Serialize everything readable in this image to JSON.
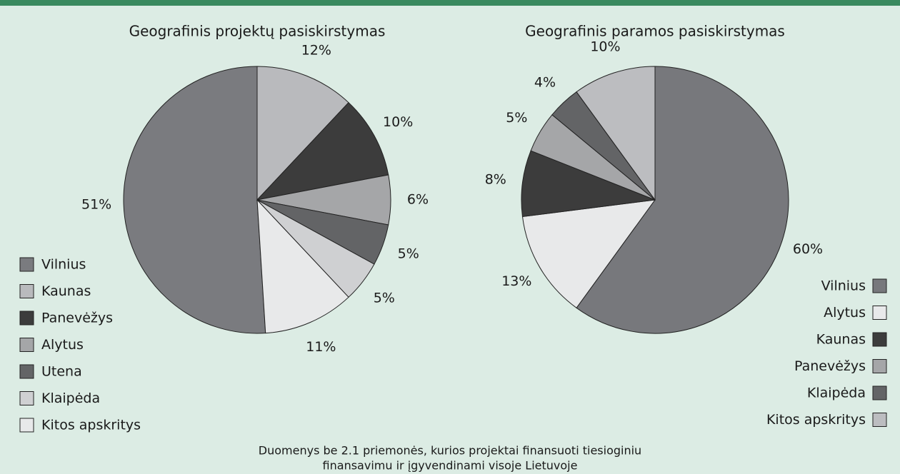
{
  "chart_data": [
    {
      "type": "pie",
      "title": "Geografinis projektų pasiskirstymas",
      "categories": [
        "Vilnius",
        "Kaunas",
        "Panevėžys",
        "Alytus",
        "Utena",
        "Klaipėda",
        "Kitos apskritys"
      ],
      "values": [
        51,
        12,
        10,
        6,
        5,
        5,
        11
      ],
      "value_labels": [
        "51%",
        "12%",
        "10%",
        "6%",
        "5%",
        "5%",
        "11%"
      ],
      "colors": [
        "#7a7b7f",
        "#b9babd",
        "#3c3c3c",
        "#a5a6a8",
        "#636466",
        "#cfd0d2",
        "#e8e9ea"
      ],
      "legend": "bottom left"
    },
    {
      "type": "pie",
      "title": "Geografinis paramos pasiskirstymas",
      "categories": [
        "Vilnius",
        "Alytus",
        "Kaunas",
        "Panevėžys",
        "Klaipėda",
        "Kitos apskritys"
      ],
      "values": [
        60,
        13,
        8,
        5,
        4,
        10
      ],
      "value_labels": [
        "60%",
        "13%",
        "8%",
        "5%",
        "4%",
        "10%"
      ],
      "colors": [
        "#77787c",
        "#e8e9ea",
        "#3c3c3c",
        "#a5a6a8",
        "#636466",
        "#bcbdc0"
      ],
      "legend": "bottom right"
    }
  ],
  "footnote": [
    "Duomenys be 2.1 priemonės, kurios projektai finansuoti tiesioginiu",
    "finansavimu ir įgyvendinami visoje Lietuvoje"
  ]
}
